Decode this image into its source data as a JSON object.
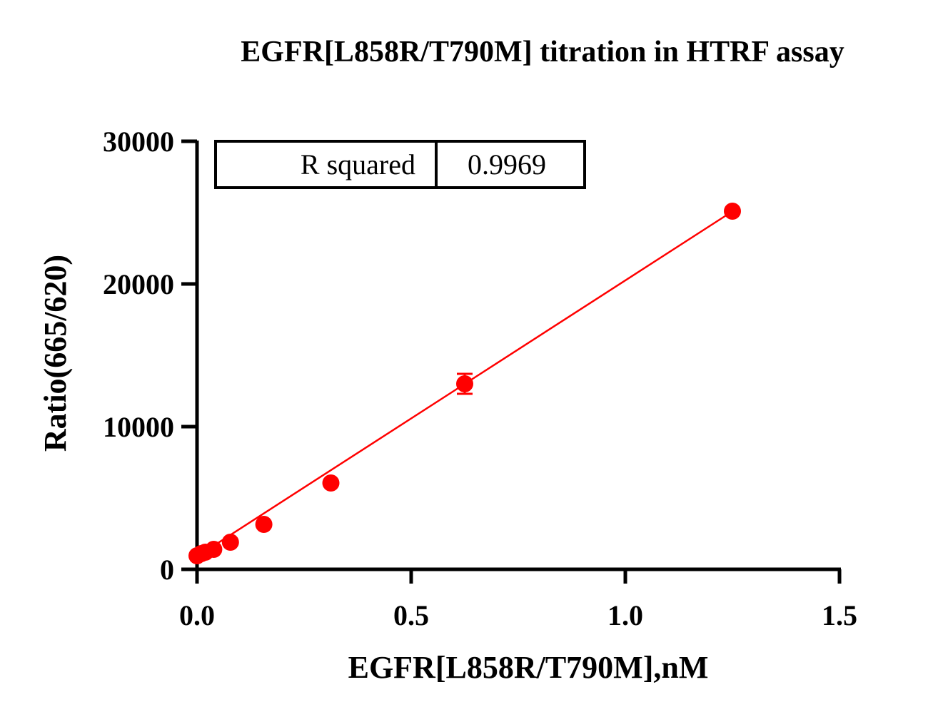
{
  "chart_data": {
    "type": "scatter",
    "title": "EGFR[L858R/T790M] titration in HTRF assay",
    "xlabel": "EGFR[L858R/T790M],nM",
    "ylabel": "Ratio(665/620)",
    "xlim": [
      0,
      1.5
    ],
    "ylim": [
      0,
      30000
    ],
    "x_ticks": [
      0.0,
      0.5,
      1.0,
      1.5
    ],
    "x_tick_labels": [
      "0.0",
      "0.5",
      "1.0",
      "1.5"
    ],
    "y_ticks": [
      0,
      10000,
      20000,
      30000
    ],
    "y_tick_labels": [
      "0",
      "10000",
      "20000",
      "30000"
    ],
    "grid": false,
    "color": "#ff0000",
    "series": [
      {
        "points": [
          {
            "x": 0.0,
            "y": 950,
            "err": 0
          },
          {
            "x": 0.0098,
            "y": 1100,
            "err": 0
          },
          {
            "x": 0.0195,
            "y": 1200,
            "err": 0
          },
          {
            "x": 0.039,
            "y": 1400,
            "err": 0
          },
          {
            "x": 0.078,
            "y": 1900,
            "err": 0
          },
          {
            "x": 0.156,
            "y": 3150,
            "err": 0
          },
          {
            "x": 0.3125,
            "y": 6050,
            "err": 0
          },
          {
            "x": 0.625,
            "y": 13000,
            "err": 700
          },
          {
            "x": 1.25,
            "y": 25100,
            "err": 0
          }
        ],
        "fit": {
          "type": "linear",
          "slope": 19350,
          "intercept": 900,
          "x_range": [
            0.0,
            1.25
          ]
        }
      }
    ],
    "stats_table": {
      "label": "R squared",
      "value": "0.9969"
    }
  }
}
